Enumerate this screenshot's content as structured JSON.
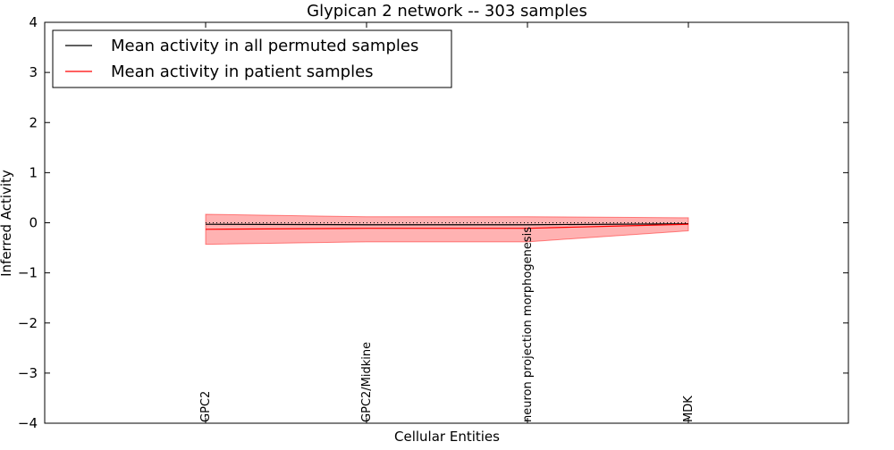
{
  "chart_data": {
    "type": "line",
    "title": "Glypican 2 network -- 303 samples",
    "xlabel": "Cellular Entities",
    "ylabel": "Inferred Activity",
    "ylim": [
      -4,
      4
    ],
    "yticks": [
      -4,
      -3,
      -2,
      -1,
      0,
      1,
      2,
      3,
      4
    ],
    "ytick_labels": [
      "−4",
      "−3",
      "−2",
      "−1",
      "0",
      "1",
      "2",
      "3",
      "4"
    ],
    "categories": [
      "GPC2",
      "GPC2/Midkine",
      "neuron projection morphogenesis",
      "MDK"
    ],
    "legend_position": "top-left",
    "grid": false,
    "reference_line": {
      "y": 0,
      "style": "dotted",
      "color": "#000000"
    },
    "series": [
      {
        "name": "Mean activity in all permuted samples",
        "color": "#000000",
        "values": [
          -0.03,
          -0.04,
          -0.04,
          -0.02
        ]
      },
      {
        "name": "Mean activity in patient samples",
        "color": "#ff0000",
        "values": [
          -0.13,
          -0.11,
          -0.11,
          -0.03
        ],
        "band_upper": [
          0.17,
          0.12,
          0.12,
          0.1
        ],
        "band_lower": [
          -0.43,
          -0.38,
          -0.38,
          -0.16
        ],
        "band_color": "#ff0000",
        "band_opacity": 0.3
      }
    ]
  }
}
